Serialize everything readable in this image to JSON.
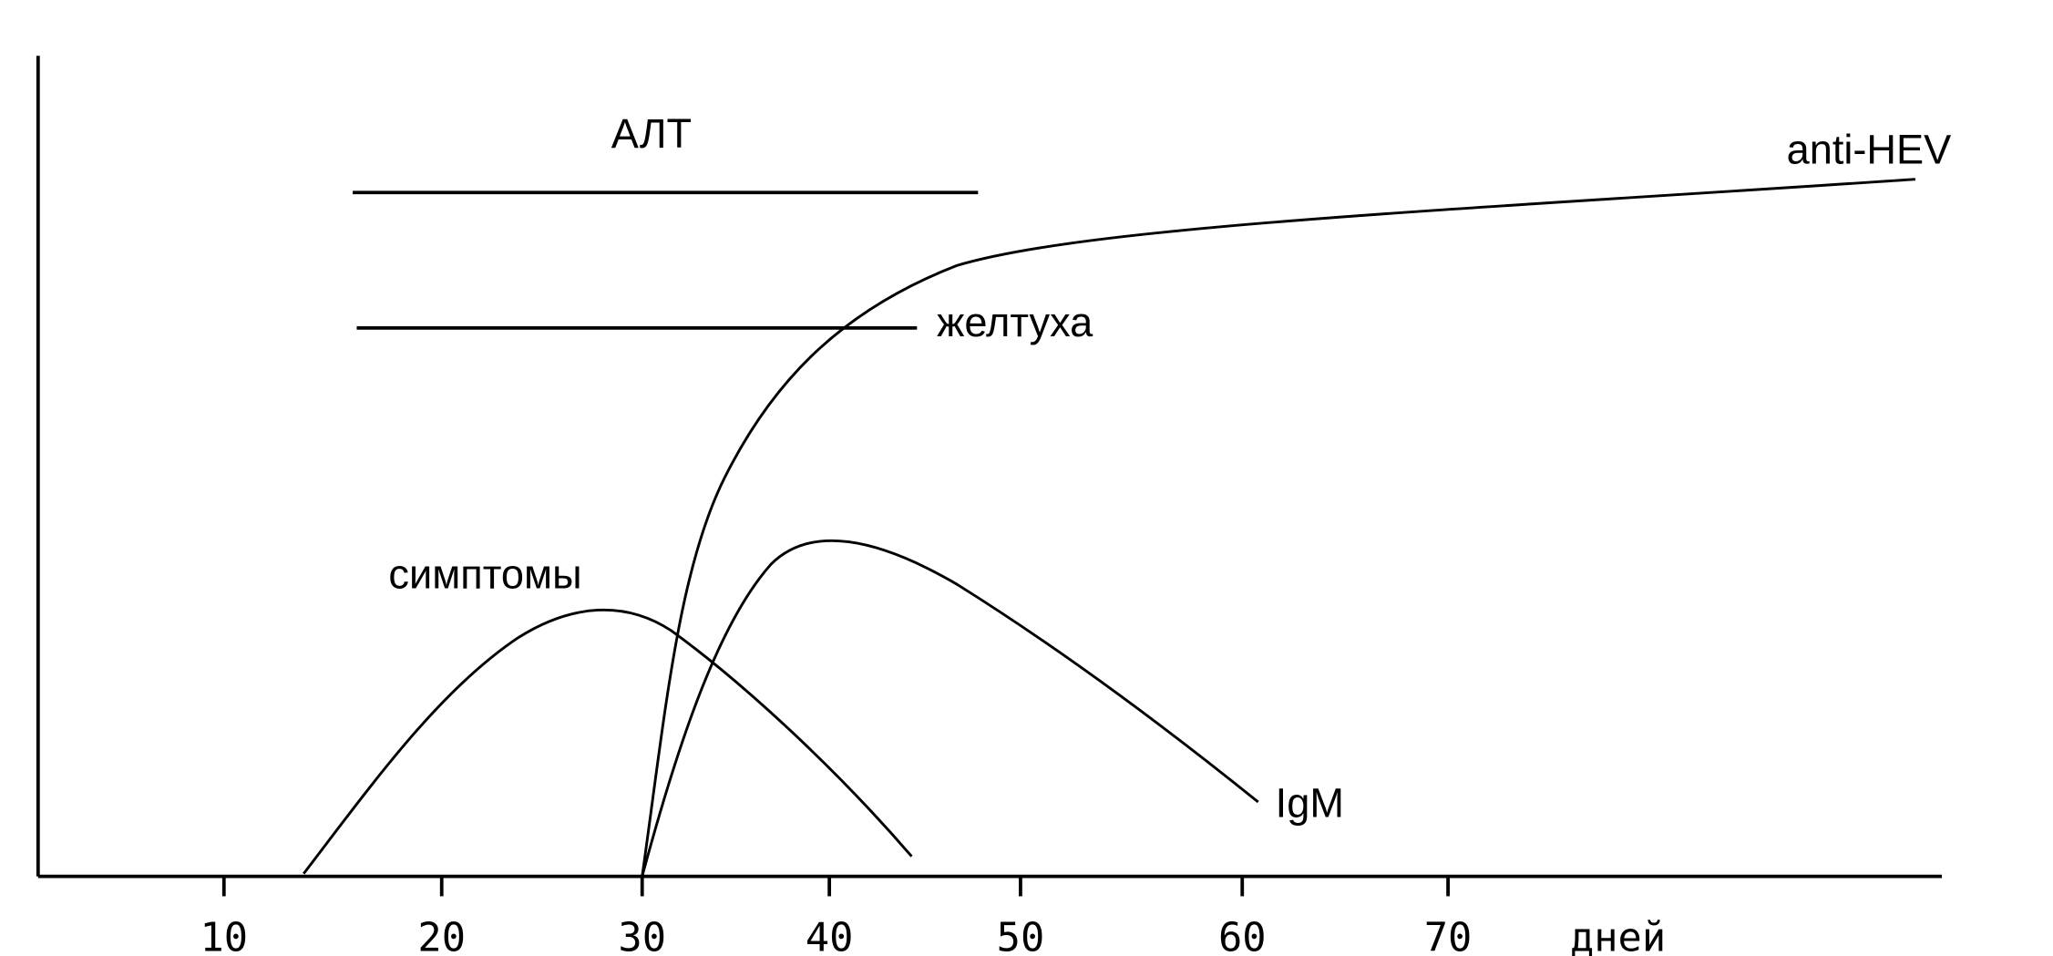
{
  "labels": {
    "alt": "АЛТ",
    "jaundice": "желтуха",
    "symptoms": "симптомы",
    "igm": "IgM",
    "anti_hev": "anti-HEV"
  },
  "axis": {
    "ticks": [
      10,
      20,
      30,
      40,
      50,
      60,
      70
    ],
    "unit": "дней"
  }
}
